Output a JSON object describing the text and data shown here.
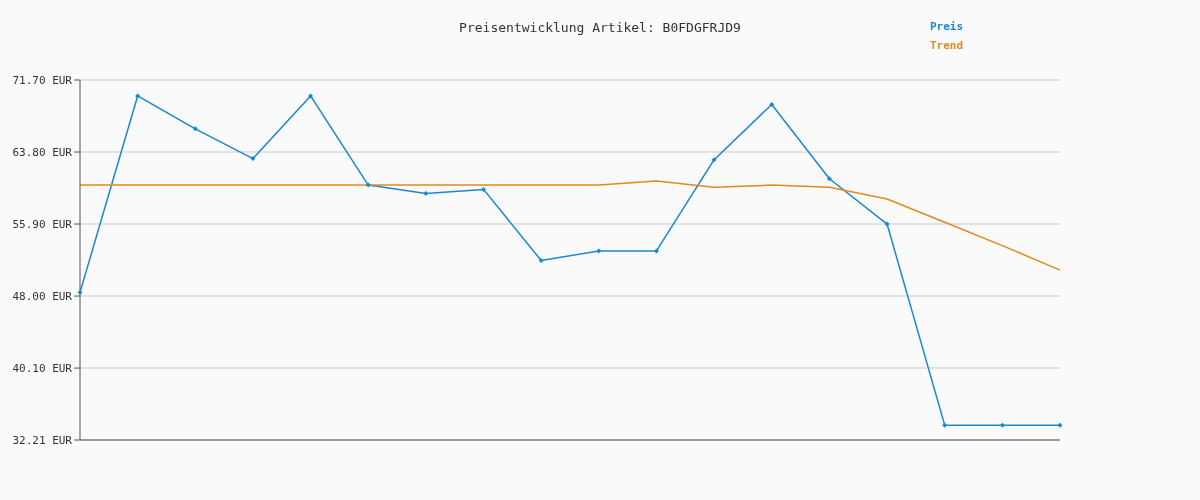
{
  "chart_data": {
    "type": "line",
    "title": "Preisentwicklung Artikel: B0FDGFRJD9",
    "categories": [
      null,
      null,
      null,
      null,
      null,
      null,
      null,
      null,
      null,
      null,
      null,
      null,
      null,
      null,
      null,
      null,
      null,
      null
    ],
    "series": [
      {
        "name": "Preis",
        "color": "#1a87d0",
        "marker": "diamond",
        "values": [
          48.4,
          69.95,
          66.34,
          63.08,
          69.95,
          60.17,
          59.24,
          59.7,
          51.9,
          52.95,
          52.95,
          62.96,
          69.02,
          60.87,
          55.9,
          33.84,
          33.84,
          33.84
        ]
      },
      {
        "name": "Trend",
        "color": "#e08a1e",
        "marker": "none",
        "values": [
          60.17,
          60.17,
          60.17,
          60.17,
          60.17,
          60.17,
          60.17,
          60.17,
          60.17,
          60.17,
          60.63,
          59.94,
          60.17,
          59.94,
          58.65,
          56.09,
          53.53,
          50.85
        ]
      }
    ],
    "ylim": [
      32.21,
      71.7
    ],
    "yticks": [
      {
        "value": 32.21,
        "label": "32.21 EUR"
      },
      {
        "value": 40.1,
        "label": "40.10 EUR"
      },
      {
        "value": 48.0,
        "label": "48.00 EUR"
      },
      {
        "value": 55.9,
        "label": "55.90 EUR"
      },
      {
        "value": 63.8,
        "label": "63.80 EUR"
      },
      {
        "value": 71.7,
        "label": "71.70 EUR"
      }
    ],
    "grid": "y",
    "legend": "top right"
  }
}
